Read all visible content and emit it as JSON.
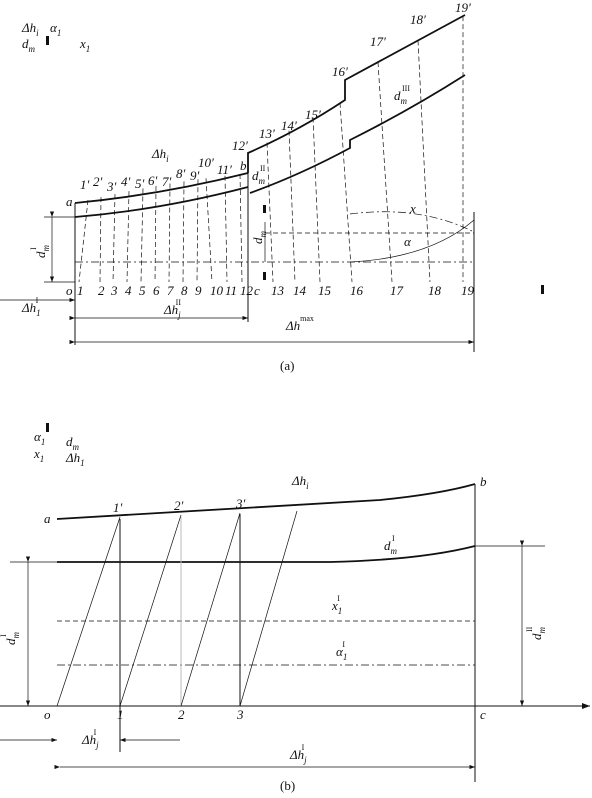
{
  "figure_a": {
    "legend": [
      {
        "t": "Δh",
        "sub": "i"
      },
      {
        "t": "α",
        "sub": "1"
      },
      {
        "t": "d",
        "sub": "m"
      },
      {
        "t": "x",
        "sub": "1"
      }
    ],
    "primed": [
      "1′",
      "2′",
      "3′",
      "4′",
      "5′",
      "6′",
      "7′",
      "8′",
      "9′",
      "10′",
      "11′",
      "12′",
      "13′",
      "14′",
      "15′",
      "16′",
      "17′",
      "18′",
      "19′"
    ],
    "numbers": [
      "1",
      "2",
      "3",
      "4",
      "5",
      "6",
      "7",
      "8",
      "9",
      "10",
      "11",
      "12",
      "13",
      "14",
      "15",
      "16",
      "17",
      "18",
      "19"
    ],
    "points": [
      "a",
      "b",
      "c",
      "o"
    ],
    "symbols": [
      {
        "t": "Δh",
        "sub": "i"
      },
      {
        "t": "d",
        "sub": "m",
        "sup": "II"
      },
      {
        "t": "d",
        "sub": "m",
        "sup": "III"
      },
      {
        "t": "x"
      },
      {
        "t": "α"
      },
      {
        "t": "d",
        "sub": "m",
        "sup": "I"
      },
      {
        "t": "d",
        "sub": "m"
      },
      {
        "t": "Δh",
        "sub": "1",
        "sup": "I"
      },
      {
        "t": "Δh",
        "sub": "j",
        "sup": "II"
      },
      {
        "t": "Δh",
        "sup": "max"
      }
    ],
    "caption": "(a)"
  },
  "figure_b": {
    "legend": [
      {
        "t": "α",
        "sub": "1"
      },
      {
        "t": "d",
        "sub": "m"
      },
      {
        "t": "x",
        "sub": "1"
      },
      {
        "t": "Δh",
        "sub": "1"
      }
    ],
    "primed": [
      "1′",
      "2′",
      "3′"
    ],
    "numbers": [
      "1",
      "2",
      "3"
    ],
    "points": [
      "a",
      "b",
      "c",
      "o"
    ],
    "symbols": [
      {
        "t": "Δh",
        "sub": "i"
      },
      {
        "t": "d",
        "sub": "m",
        "sup": "I"
      },
      {
        "t": "x",
        "sub": "1",
        "sup": "I"
      },
      {
        "t": "α",
        "sub": "1",
        "sup": "I"
      },
      {
        "t": "d",
        "sub": "m",
        "sup": "I"
      },
      {
        "t": "d",
        "sub": "m",
        "sup": "II"
      },
      {
        "t": "Δh",
        "sub": "j",
        "sup": "I"
      },
      {
        "t": "Δh",
        "sub": "j",
        "sup": "I"
      }
    ],
    "caption": "(b)"
  }
}
